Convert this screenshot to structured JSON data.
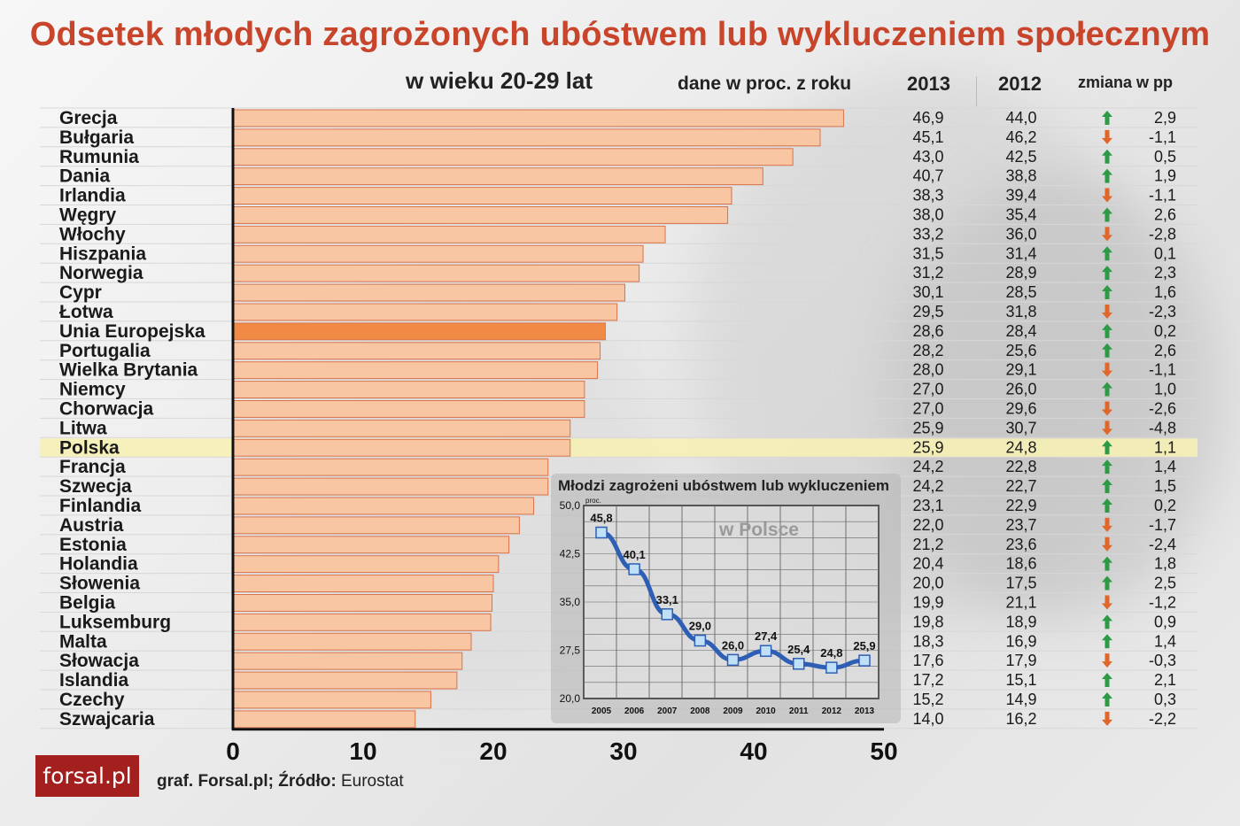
{
  "title": "Odsetek młodych zagrożonych ubóstwem lub wykluczeniem społecznym",
  "subtitle": "w wieku 20-29 lat",
  "data_note": "dane w proc. z roku",
  "columns": {
    "y2013": "2013",
    "y2012": "2012",
    "change": "zmiana w pp"
  },
  "colors": {
    "title": "#c8442b",
    "bar": "#f8c6a2",
    "bar_highlight": "#f08a44",
    "row_highlight": "#f6f0b4",
    "up": "#2e9a46",
    "down": "#e0662a",
    "inset_line": "#2e5fb5"
  },
  "chart_data": [
    {
      "type": "bar",
      "orientation": "horizontal",
      "categories": [
        "Grecja",
        "Bułgaria",
        "Rumunia",
        "Dania",
        "Irlandia",
        "Węgry",
        "Włochy",
        "Hiszpania",
        "Norwegia",
        "Cypr",
        "Łotwa",
        "Unia Europejska",
        "Portugalia",
        "Wielka Brytania",
        "Niemcy",
        "Chorwacja",
        "Litwa",
        "Polska",
        "Francja",
        "Szwecja",
        "Finlandia",
        "Austria",
        "Estonia",
        "Holandia",
        "Słowenia",
        "Belgia",
        "Luksemburg",
        "Malta",
        "Słowacja",
        "Islandia",
        "Czechy",
        "Szwajcaria"
      ],
      "series": [
        {
          "name": "2013",
          "values": [
            46.9,
            45.1,
            43.0,
            40.7,
            38.3,
            38.0,
            33.2,
            31.5,
            31.2,
            30.1,
            29.5,
            28.6,
            28.2,
            28.0,
            27.0,
            27.0,
            25.9,
            25.9,
            24.2,
            24.2,
            23.1,
            22.0,
            21.2,
            20.4,
            20.0,
            19.9,
            19.8,
            18.3,
            17.6,
            17.2,
            15.2,
            14.0
          ]
        },
        {
          "name": "2012",
          "values": [
            44.0,
            46.2,
            42.5,
            38.8,
            39.4,
            35.4,
            36.0,
            31.4,
            28.9,
            28.5,
            31.8,
            28.4,
            25.6,
            29.1,
            26.0,
            29.6,
            30.7,
            24.8,
            22.8,
            22.7,
            22.9,
            23.7,
            23.6,
            18.6,
            17.5,
            21.1,
            18.9,
            16.9,
            17.9,
            15.1,
            14.9,
            16.2
          ]
        }
      ],
      "labels_2013": [
        "46,9",
        "45,1",
        "43,0",
        "40,7",
        "38,3",
        "38,0",
        "33,2",
        "31,5",
        "31,2",
        "30,1",
        "29,5",
        "28,6",
        "28,2",
        "28,0",
        "27,0",
        "27,0",
        "25,9",
        "25,9",
        "24,2",
        "24,2",
        "23,1",
        "22,0",
        "21,2",
        "20,4",
        "20,0",
        "19,9",
        "19,8",
        "18,3",
        "17,6",
        "17,2",
        "15,2",
        "14,0"
      ],
      "labels_2012": [
        "44,0",
        "46,2",
        "42,5",
        "38,8",
        "39,4",
        "35,4",
        "36,0",
        "31,4",
        "28,9",
        "28,5",
        "31,8",
        "28,4",
        "25,6",
        "29,1",
        "26,0",
        "29,6",
        "30,7",
        "24,8",
        "22,8",
        "22,7",
        "22,9",
        "23,7",
        "23,6",
        "18,6",
        "17,5",
        "21,1",
        "18,9",
        "16,9",
        "17,9",
        "15,1",
        "14,9",
        "16,2"
      ],
      "change_labels": [
        "2,9",
        "-1,1",
        "0,5",
        "1,9",
        "-1,1",
        "2,6",
        "-2,8",
        "0,1",
        "2,3",
        "1,6",
        "-2,3",
        "0,2",
        "2,6",
        "-1,1",
        "1,0",
        "-2,6",
        "-4,8",
        "1,1",
        "1,4",
        "1,5",
        "0,2",
        "-1,7",
        "-2,4",
        "1,8",
        "2,5",
        "-1,2",
        "0,9",
        "1,4",
        "-0,3",
        "2,1",
        "0,3",
        "-2,2"
      ],
      "change_direction": [
        "up",
        "down",
        "up",
        "up",
        "down",
        "up",
        "down",
        "up",
        "up",
        "up",
        "down",
        "up",
        "up",
        "down",
        "up",
        "down",
        "down",
        "up",
        "up",
        "up",
        "up",
        "down",
        "down",
        "up",
        "up",
        "down",
        "up",
        "up",
        "down",
        "up",
        "up",
        "down"
      ],
      "highlight_bar": "Unia Europejska",
      "highlight_row": "Polska",
      "xlim": [
        0,
        50
      ],
      "xticks": [
        "0",
        "10",
        "20",
        "30",
        "40",
        "50"
      ],
      "grid": false
    },
    {
      "type": "line",
      "title": "Młodzi zagrożeni ubóstwem lub wykluczeniem",
      "overlay_text": "w Polsce",
      "ylabel": "proc.",
      "x": [
        "2005",
        "2006",
        "2007",
        "2008",
        "2009",
        "2010",
        "2011",
        "2012",
        "2013"
      ],
      "values": [
        45.8,
        40.1,
        33.1,
        29.0,
        26.0,
        27.4,
        25.4,
        24.8,
        25.9
      ],
      "value_labels": [
        "45,8",
        "40,1",
        "33,1",
        "29,0",
        "26,0",
        "27,4",
        "25,4",
        "24,8",
        "25,9"
      ],
      "ylim": [
        20,
        50
      ],
      "yticks": [
        "20,0",
        "27,5",
        "35,0",
        "42,5",
        "50,0"
      ],
      "grid": true
    }
  ],
  "source": {
    "prefix": "graf. Forsal.pl; Źródło:",
    "name": "Eurostat"
  },
  "logo": "forsal.pl"
}
